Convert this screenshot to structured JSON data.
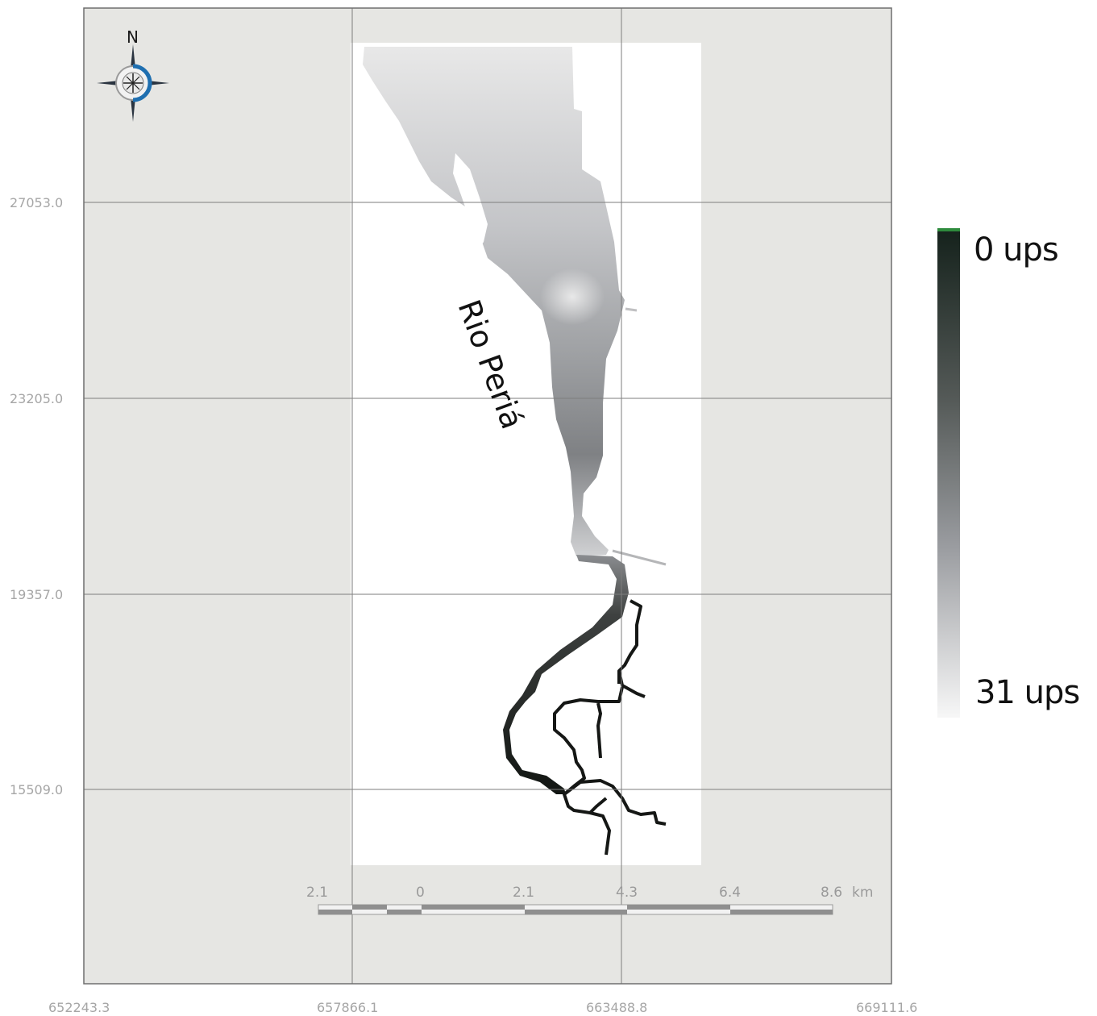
{
  "map": {
    "river_name": "Rio Periá",
    "north_label": "N",
    "y_axis_labels": [
      "27053.0",
      "23205.0",
      "19357.0",
      "15509.0"
    ],
    "x_axis_labels": [
      "652243.3",
      "657866.1",
      "663488.8",
      "669111.6"
    ],
    "scale_bar": {
      "labels": [
        "2.1",
        "0",
        "2.1",
        "4.3",
        "6.4",
        "8.6"
      ],
      "unit": "km"
    },
    "legend": {
      "top_label": "0 ups",
      "bottom_label": "31 ups",
      "top_color": "#15221c",
      "bottom_color": "#f7f7f7",
      "accent_color": "#2e8b3d"
    },
    "colors": {
      "map_background": "#e6e6e3",
      "raster_background": "#ffffff",
      "grid_line": "#7a7a7a",
      "compass_ring": "#1f6fb0"
    }
  }
}
